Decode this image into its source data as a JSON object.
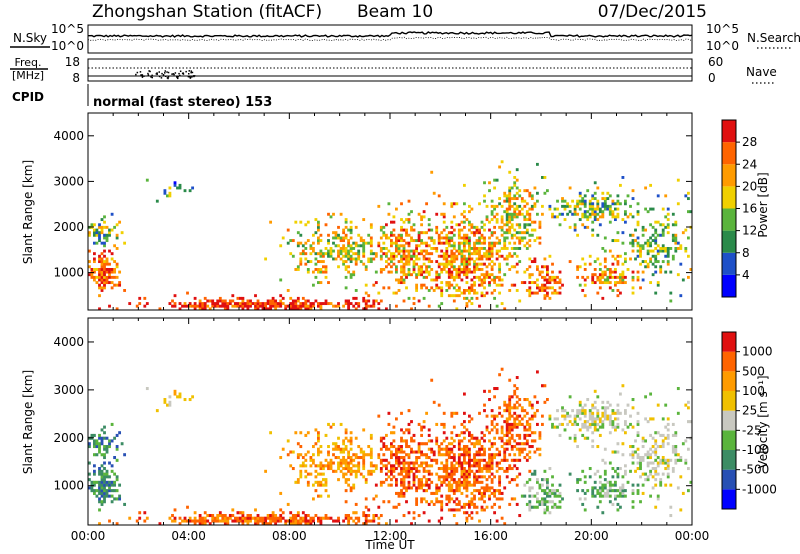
{
  "header": {
    "station": "Zhongshan Station (fitACF)",
    "beam": "Beam 10",
    "date": "07/Dec/2015"
  },
  "noise_panel": {
    "left_label": "N.Sky",
    "right_label": "N.Search",
    "left_ticks": [
      "10^5",
      "10^0"
    ],
    "right_ticks": [
      "10^5",
      "10^0"
    ]
  },
  "freq_panel": {
    "left_label_top": "Freq.",
    "left_label_bottom": "[MHz]",
    "right_label": "Nave",
    "left_ticks": [
      "18",
      "8"
    ],
    "right_ticks": [
      "60",
      "0"
    ]
  },
  "cpid": {
    "label": "CPID",
    "value": "normal (fast stereo) 153"
  },
  "colors": {
    "scale": [
      "#0000ff",
      "#1e50c8",
      "#2a8a4a",
      "#5ab43c",
      "#f0d000",
      "#ff9b00",
      "#ff6400",
      "#e01010"
    ],
    "velocity_scale": [
      "#e01010",
      "#ff6400",
      "#ff9b00",
      "#f0c000",
      "#c8c8c0",
      "#5ab43c",
      "#3c8c64",
      "#2850b4",
      "#0000ff"
    ]
  },
  "chart_data": [
    {
      "type": "heatmap",
      "ylabel": "Slant Range [km]",
      "yticks": [
        "1000",
        "2000",
        "3000",
        "4000"
      ],
      "ylim": [
        180,
        4500
      ],
      "xlim_hours": [
        0,
        24
      ],
      "xticks": [
        "00:00",
        "04:00",
        "08:00",
        "12:00",
        "16:00",
        "20:00",
        "00:00"
      ],
      "colorbar": {
        "label": "Power [dB]",
        "ticks": [
          "4",
          "8",
          "12",
          "16",
          "20",
          "24",
          "28"
        ]
      }
    },
    {
      "type": "heatmap",
      "ylabel": "Slant Range [km]",
      "yticks": [
        "1000",
        "2000",
        "3000",
        "4000"
      ],
      "ylim": [
        180,
        4500
      ],
      "xlim_hours": [
        0,
        24
      ],
      "xticks": [
        "00:00",
        "04:00",
        "08:00",
        "12:00",
        "16:00",
        "20:00",
        "00:00"
      ],
      "xlabel": "Time UT",
      "colorbar": {
        "label": "Velocity [m s⁻¹]",
        "ticks": [
          "1000",
          "500",
          "100",
          "25",
          "-25",
          "-100",
          "-500",
          "-1000"
        ]
      }
    }
  ]
}
